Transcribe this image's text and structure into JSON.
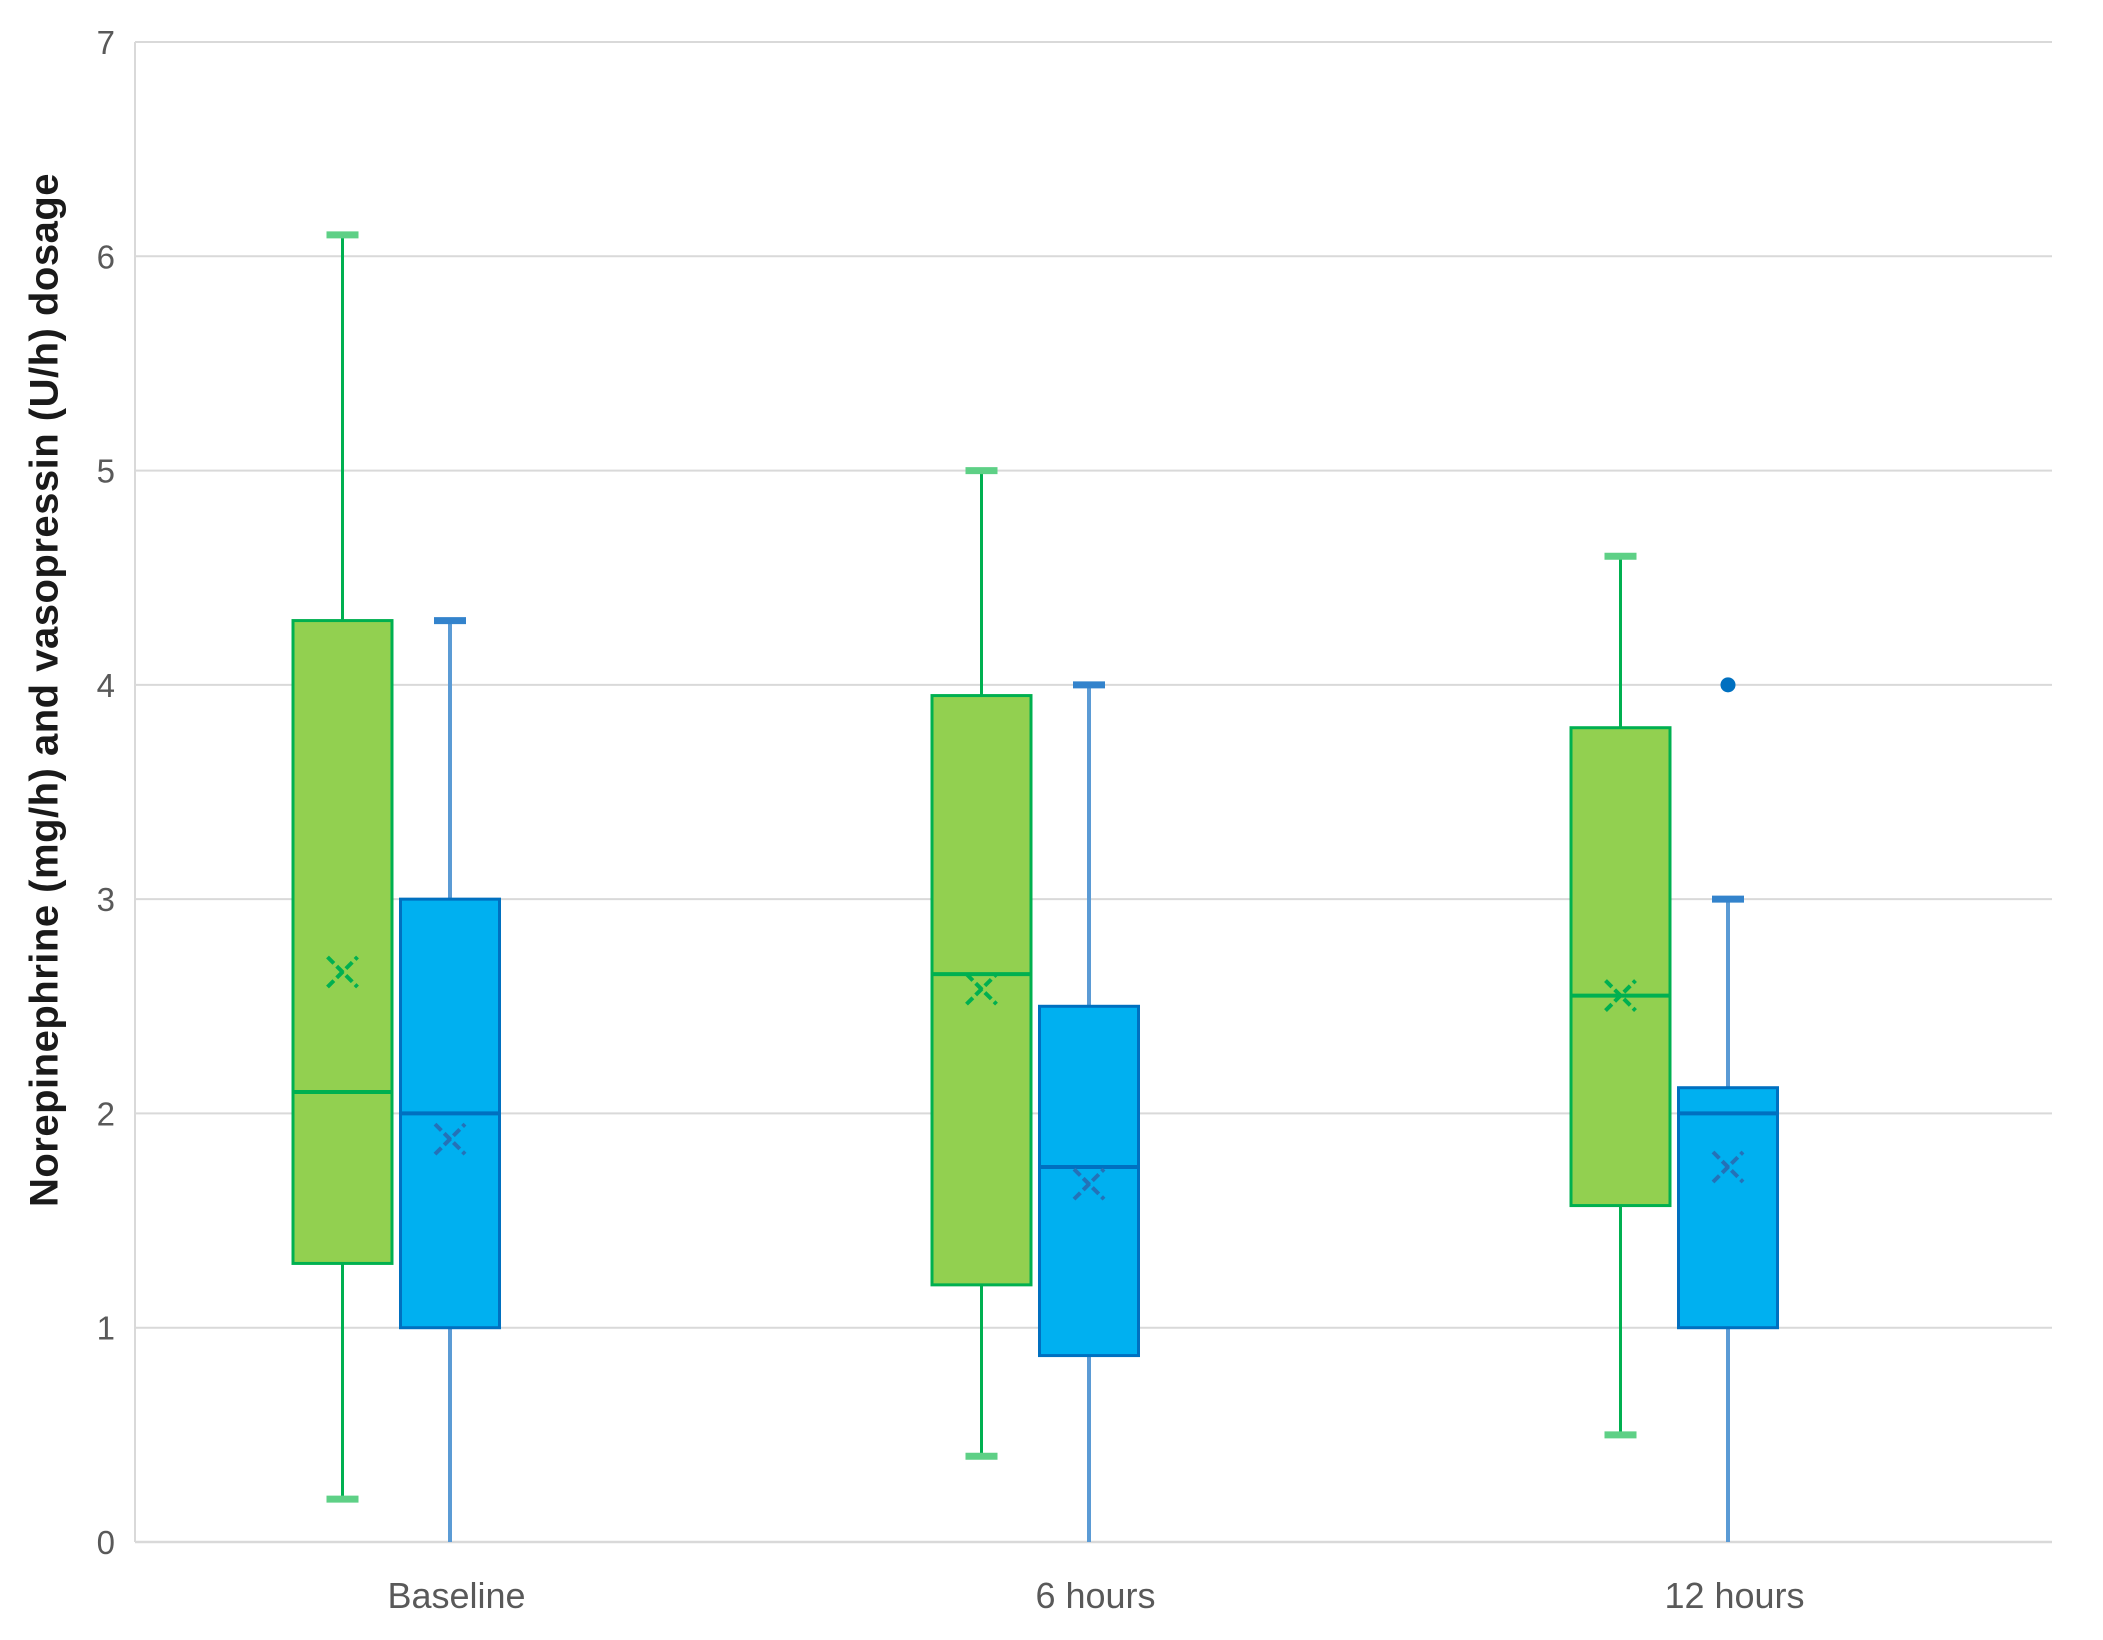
{
  "chart_data": {
    "type": "boxplot",
    "title": "",
    "ylabel": "Norepinephrine (mg/h) and vasopressin (U/h) dosage",
    "xlabel": "",
    "categories": [
      "Baseline",
      "6 hours",
      "12 hours"
    ],
    "ylim": [
      0,
      7
    ],
    "y_ticks": [
      "0",
      "1",
      "2",
      "3",
      "4",
      "5",
      "6",
      "7"
    ],
    "grid": true,
    "legend": "none",
    "colors": {
      "grid_line": "#d9d9d9",
      "axis_line": "#d9d9d9",
      "tick_label": "#595959",
      "category_label": "#595959",
      "axis_title": "#1a1a1a"
    },
    "series": [
      {
        "name": "Norepinephrine (mg/h)",
        "color_fill": "#92d050",
        "color_border": "#00b050",
        "color_median": "#00b050",
        "color_whisker": "#00b050",
        "color_cap": "#5ed086",
        "color_mean": "#00b050",
        "boxes": [
          {
            "category": "Baseline",
            "min": 0.2,
            "q1": 1.3,
            "median": 2.1,
            "q3": 4.3,
            "max": 6.1,
            "mean": 2.66,
            "outliers": []
          },
          {
            "category": "6 hours",
            "min": 0.4,
            "q1": 1.2,
            "median": 2.65,
            "q3": 3.95,
            "max": 5.0,
            "mean": 2.58,
            "outliers": []
          },
          {
            "category": "12 hours",
            "min": 0.5,
            "q1": 1.57,
            "median": 2.55,
            "q3": 3.8,
            "max": 4.6,
            "mean": 2.55,
            "outliers": []
          }
        ]
      },
      {
        "name": "Vasopressin (U/h)",
        "color_fill": "#00b0f0",
        "color_border": "#0070c0",
        "color_median": "#0070c0",
        "color_whisker": "#5b9bd5",
        "color_cap": "#3383cc",
        "color_mean": "#2472b8",
        "boxes": [
          {
            "category": "Baseline",
            "min": 0,
            "q1": 1.0,
            "median": 2.0,
            "q3": 3.0,
            "max": 4.3,
            "mean": 1.88,
            "outliers": []
          },
          {
            "category": "6 hours",
            "min": 0,
            "q1": 0.87,
            "median": 1.75,
            "q3": 2.5,
            "max": 4.0,
            "mean": 1.67,
            "outliers": []
          },
          {
            "category": "12 hours",
            "min": 0,
            "q1": 1.0,
            "median": 2.0,
            "q3": 2.12,
            "max": 3.0,
            "mean": 1.75,
            "outliers": [
              4.0
            ]
          }
        ]
      }
    ]
  }
}
